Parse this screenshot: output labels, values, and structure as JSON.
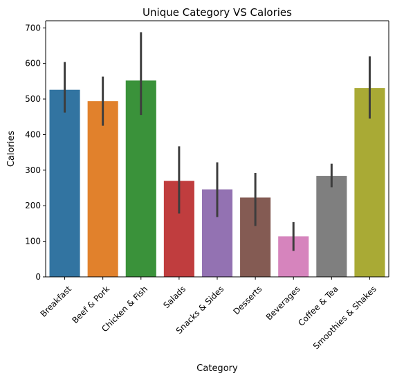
{
  "chart_data": {
    "type": "bar",
    "title": "Unique Category VS Calories",
    "xlabel": "Category",
    "ylabel": "Calories",
    "ylim": [
      0,
      720
    ],
    "yticks": [
      0,
      100,
      200,
      300,
      400,
      500,
      600,
      700
    ],
    "grid": false,
    "categories": [
      "Breakfast",
      "Beef & Pork",
      "Chicken & Fish",
      "Salads",
      "Snacks & Sides",
      "Desserts",
      "Beverages",
      "Coffee & Tea",
      "Smoothies & Shakes"
    ],
    "values": [
      526,
      494,
      552,
      270,
      246,
      223,
      114,
      284,
      531
    ],
    "error_low": [
      462,
      425,
      455,
      178,
      168,
      143,
      73,
      252,
      445
    ],
    "error_high": [
      604,
      563,
      688,
      367,
      322,
      292,
      154,
      318,
      620
    ],
    "colors": [
      "#3274a1",
      "#e1812c",
      "#3a923a",
      "#c03d3e",
      "#9372b2",
      "#845b53",
      "#d684bd",
      "#7f7f7f",
      "#a9aa35"
    ]
  }
}
